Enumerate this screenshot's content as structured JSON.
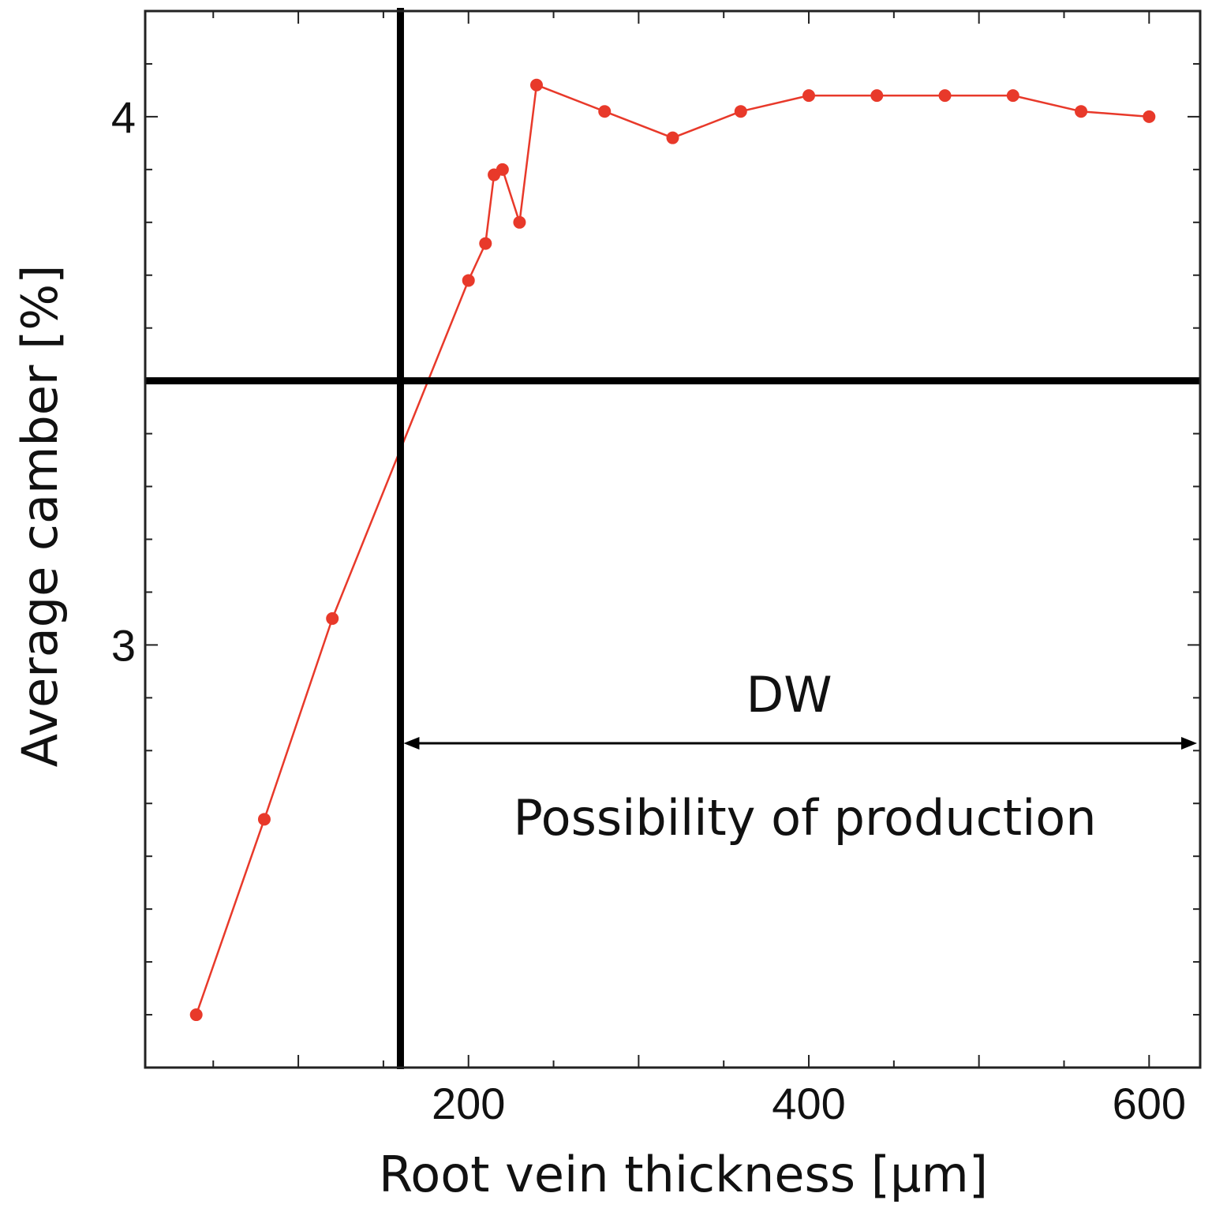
{
  "chart_data": {
    "type": "line",
    "title": "",
    "xlabel": "Root vein thickness [μm]",
    "ylabel": "Average camber [%]",
    "xlim": [
      10,
      630
    ],
    "ylim": [
      2.2,
      4.2
    ],
    "xticks": [
      200,
      400,
      600
    ],
    "yticks": [
      3,
      4
    ],
    "grid": false,
    "series": [
      {
        "name": "Average camber",
        "color": "#e8392a",
        "x": [
          40,
          80,
          120,
          200,
          210,
          215,
          220,
          230,
          240,
          280,
          320,
          360,
          400,
          440,
          480,
          520,
          560,
          600
        ],
        "y": [
          2.3,
          2.67,
          3.05,
          3.69,
          3.76,
          3.89,
          3.9,
          3.8,
          4.06,
          4.01,
          3.96,
          4.01,
          4.04,
          4.04,
          4.04,
          4.04,
          4.01,
          4.0
        ]
      }
    ],
    "reference_lines": {
      "vertical_x": 160,
      "horizontal_y": 3.5,
      "color": "#000000"
    },
    "annotations": {
      "region_label": "DW",
      "region_caption": "Possibility of production",
      "arrow_from_x": 160,
      "arrow_to_x": 630
    }
  }
}
